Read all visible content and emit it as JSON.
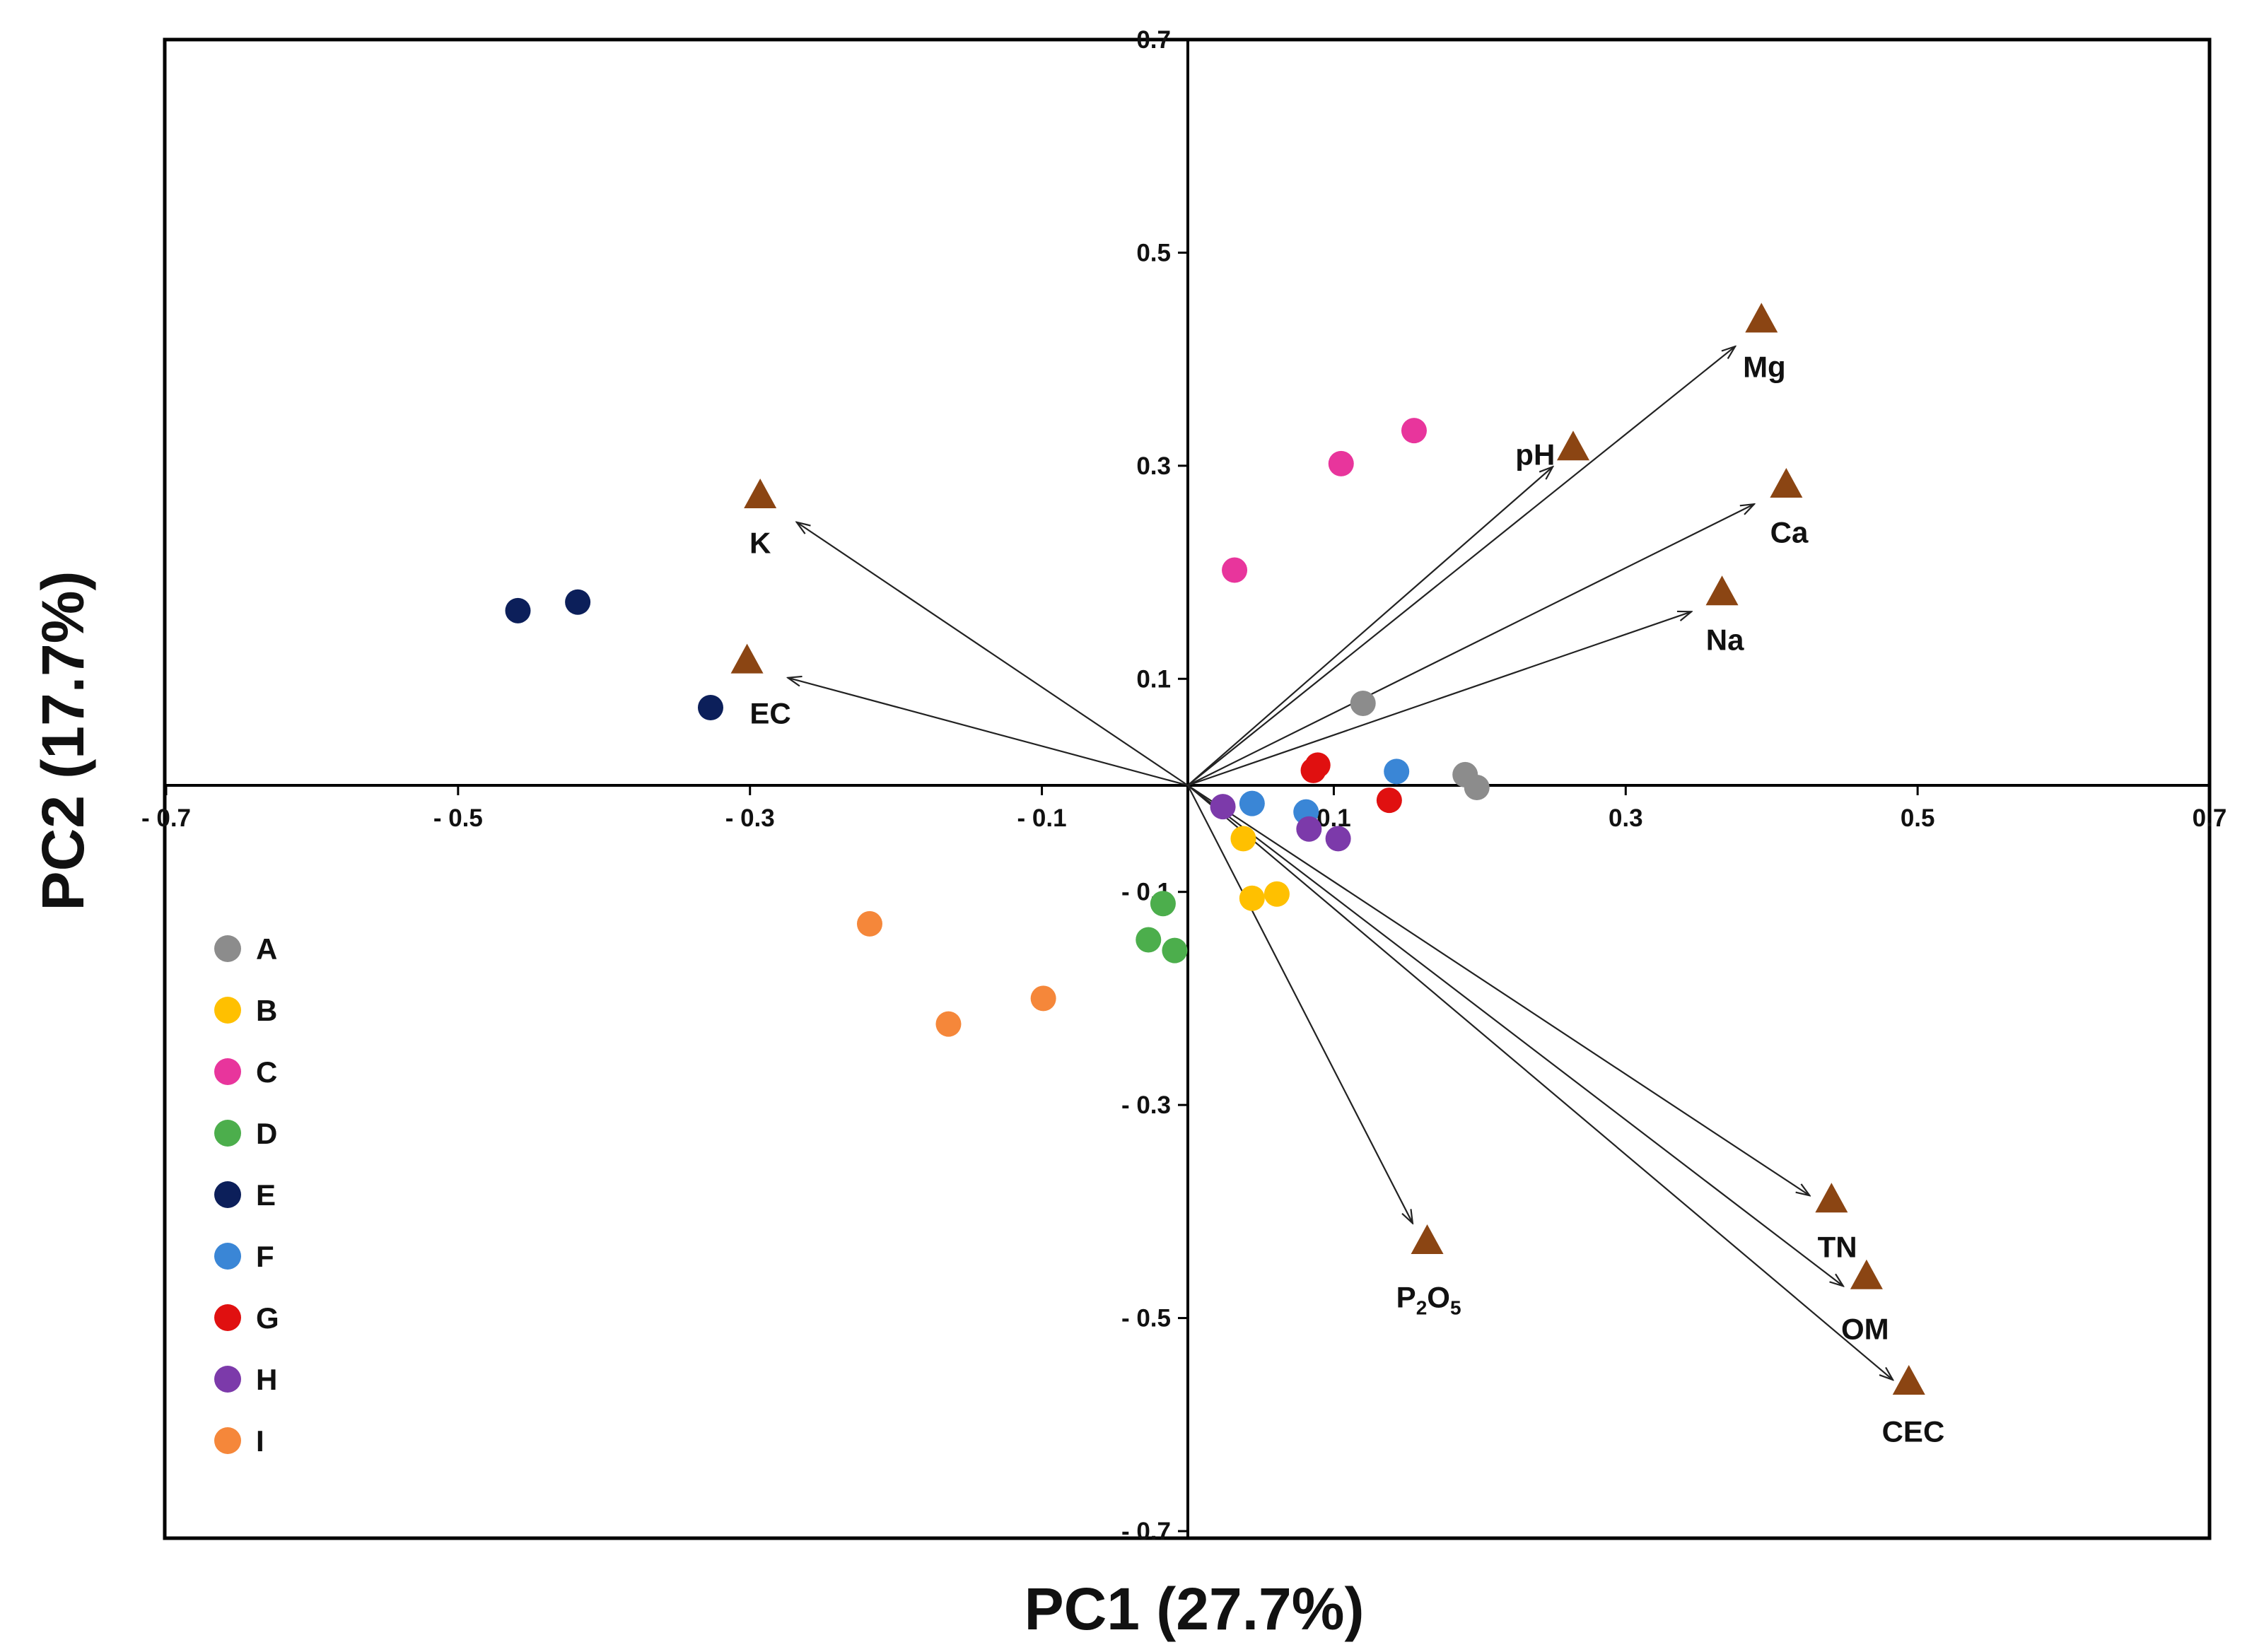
{
  "chart_data": {
    "type": "scatter",
    "subtype": "pca-biplot",
    "xlabel": "PC1 (27.7%)",
    "ylabel": "PC2 (17.7%)",
    "xlim": [
      -0.7,
      0.7
    ],
    "ylim": [
      -0.7,
      0.7
    ],
    "x_ticks": [
      {
        "value": -0.7,
        "label": "- 0.7"
      },
      {
        "value": -0.5,
        "label": "- 0.5"
      },
      {
        "value": -0.3,
        "label": "- 0.3"
      },
      {
        "value": -0.1,
        "label": "- 0.1"
      },
      {
        "value": 0.1,
        "label": "0.1"
      },
      {
        "value": 0.3,
        "label": "0.3"
      },
      {
        "value": 0.5,
        "label": "0.5"
      },
      {
        "value": 0.7,
        "label": "0.7"
      }
    ],
    "y_ticks": [
      {
        "value": 0.7,
        "label": "0.7"
      },
      {
        "value": 0.5,
        "label": "0.5"
      },
      {
        "value": 0.3,
        "label": "0.3"
      },
      {
        "value": 0.1,
        "label": "0.1"
      },
      {
        "value": -0.1,
        "label": "- 0.1"
      },
      {
        "value": -0.3,
        "label": "- 0.3"
      },
      {
        "value": -0.5,
        "label": "- 0.5"
      },
      {
        "value": -0.7,
        "label": "- 0.7"
      }
    ],
    "series": [
      {
        "name": "A",
        "color": "#8c8c8c",
        "points": [
          [
            0.12,
            0.077
          ],
          [
            0.19,
            0.01
          ],
          [
            0.198,
            -0.002
          ]
        ]
      },
      {
        "name": "B",
        "color": "#ffc000",
        "points": [
          [
            0.038,
            -0.05
          ],
          [
            0.044,
            -0.106
          ],
          [
            0.061,
            -0.102
          ]
        ]
      },
      {
        "name": "C",
        "color": "#e8359c",
        "points": [
          [
            0.155,
            0.333
          ],
          [
            0.105,
            0.302
          ],
          [
            0.032,
            0.202
          ]
        ]
      },
      {
        "name": "D",
        "color": "#4cae4c",
        "points": [
          [
            -0.017,
            -0.111
          ],
          [
            -0.027,
            -0.145
          ],
          [
            -0.009,
            -0.155
          ]
        ]
      },
      {
        "name": "E",
        "color": "#0c1f5a",
        "points": [
          [
            -0.459,
            0.164
          ],
          [
            -0.418,
            0.172
          ],
          [
            -0.327,
            0.073
          ]
        ]
      },
      {
        "name": "F",
        "color": "#3a86d6",
        "points": [
          [
            0.044,
            -0.017
          ],
          [
            0.081,
            -0.025
          ],
          [
            0.143,
            0.013
          ]
        ]
      },
      {
        "name": "G",
        "color": "#e01010",
        "points": [
          [
            0.086,
            0.014
          ],
          [
            0.089,
            0.019
          ],
          [
            0.138,
            -0.014
          ]
        ]
      },
      {
        "name": "H",
        "color": "#7c3aaa",
        "points": [
          [
            0.024,
            -0.02
          ],
          [
            0.083,
            -0.041
          ],
          [
            0.103,
            -0.05
          ]
        ]
      },
      {
        "name": "I",
        "color": "#f5873a",
        "points": [
          [
            -0.218,
            -0.13
          ],
          [
            -0.164,
            -0.224
          ],
          [
            -0.099,
            -0.2
          ]
        ]
      }
    ],
    "loadings": {
      "marker_color": "#8b4513",
      "arrow_color": "#222222",
      "variables": [
        {
          "name": "Mg",
          "arrow": [
            0.375,
            0.412
          ],
          "marker": [
            0.393,
            0.437
          ],
          "label_pos": [
            0.395,
            0.393
          ]
        },
        {
          "name": "pH",
          "arrow": [
            0.25,
            0.299
          ],
          "marker": [
            0.264,
            0.317
          ],
          "label_pos": [
            0.238,
            0.311
          ]
        },
        {
          "name": "Ca",
          "arrow": [
            0.388,
            0.264
          ],
          "marker": [
            0.41,
            0.282
          ],
          "label_pos": [
            0.412,
            0.238
          ]
        },
        {
          "name": "Na",
          "arrow": [
            0.345,
            0.163
          ],
          "marker": [
            0.366,
            0.181
          ],
          "label_pos": [
            0.368,
            0.137
          ]
        },
        {
          "name": "K",
          "arrow": [
            -0.268,
            0.247
          ],
          "marker": [
            -0.293,
            0.272
          ],
          "label_pos": [
            -0.293,
            0.228
          ]
        },
        {
          "name": "EC",
          "arrow": [
            -0.274,
            0.101
          ],
          "marker": [
            -0.302,
            0.117
          ],
          "label_pos": [
            -0.286,
            0.068
          ]
        },
        {
          "name": "TN",
          "arrow": [
            0.426,
            -0.385
          ],
          "marker": [
            0.441,
            -0.389
          ],
          "label_pos": [
            0.445,
            -0.433
          ]
        },
        {
          "name": "OM",
          "arrow": [
            0.449,
            -0.47
          ],
          "marker": [
            0.465,
            -0.461
          ],
          "label_pos": [
            0.464,
            -0.51
          ]
        },
        {
          "name": "CEC",
          "arrow": [
            0.483,
            -0.558
          ],
          "marker": [
            0.494,
            -0.56
          ],
          "label_pos": [
            0.497,
            -0.606
          ]
        },
        {
          "name": "P2O5",
          "label_display": {
            "base1": "P",
            "sub1": "2",
            "base2": "O",
            "sub2": "5"
          },
          "arrow": [
            0.154,
            -0.411
          ],
          "marker": [
            0.164,
            -0.428
          ],
          "label_pos": [
            0.165,
            -0.48
          ]
        }
      ]
    },
    "legend": {
      "position": "left",
      "entries": [
        "A",
        "B",
        "C",
        "D",
        "E",
        "F",
        "G",
        "H",
        "I"
      ]
    }
  }
}
